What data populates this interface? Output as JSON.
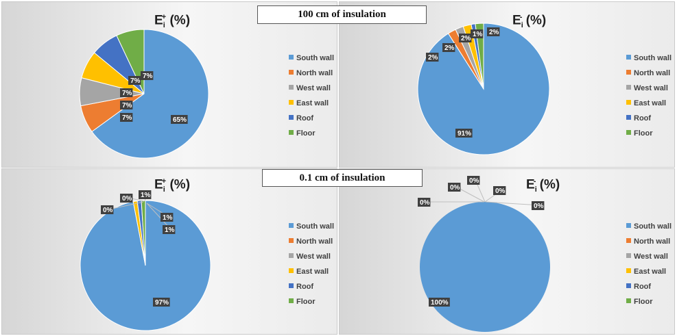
{
  "banners": {
    "top": "100 cm of insulation",
    "bottom": "0.1 cm of insulation"
  },
  "colors": {
    "South wall": "#5b9bd5",
    "North wall": "#ed7d31",
    "West wall": "#a5a5a5",
    "East wall": "#ffc000",
    "Roof": "#4472c4",
    "Floor": "#70ad47"
  },
  "chart_data": [
    {
      "type": "pie",
      "title_main": "E",
      "title_sub": "i",
      "title_sup": "+",
      "title_tail": " (%)",
      "categories": [
        "South wall",
        "North wall",
        "West wall",
        "East wall",
        "Roof",
        "Floor"
      ],
      "values": [
        65,
        7,
        7,
        7,
        7,
        7
      ],
      "labels": [
        "65%",
        "7%",
        "7%",
        "7%",
        "7%",
        "7%"
      ],
      "legend_position": "right"
    },
    {
      "type": "pie",
      "title_main": "E",
      "title_sub": "i",
      "title_sup": "-",
      "title_tail": " (%)",
      "categories": [
        "South wall",
        "North wall",
        "West wall",
        "East wall",
        "Roof",
        "Floor"
      ],
      "values": [
        91,
        2,
        2,
        2,
        1,
        2
      ],
      "labels": [
        "91%",
        "2%",
        "2%",
        "2%",
        "1%",
        "2%"
      ],
      "legend_position": "right"
    },
    {
      "type": "pie",
      "title_main": "E",
      "title_sub": "i",
      "title_sup": "+",
      "title_tail": " (%)",
      "categories": [
        "South wall",
        "North wall",
        "West wall",
        "East wall",
        "Roof",
        "Floor"
      ],
      "values": [
        97,
        0,
        0,
        1,
        1,
        1
      ],
      "labels": [
        "97%",
        "0%",
        "0%",
        "1%",
        "1%",
        "1%"
      ],
      "legend_position": "right"
    },
    {
      "type": "pie",
      "title_main": "E",
      "title_sub": "i",
      "title_sup": "-",
      "title_tail": " (%)",
      "categories": [
        "South wall",
        "North wall",
        "West wall",
        "East wall",
        "Roof",
        "Floor"
      ],
      "values": [
        100,
        0,
        0,
        0,
        0,
        0
      ],
      "labels": [
        "100%",
        "0%",
        "0%",
        "0%",
        "0%",
        "0%"
      ],
      "legend_position": "right"
    }
  ]
}
